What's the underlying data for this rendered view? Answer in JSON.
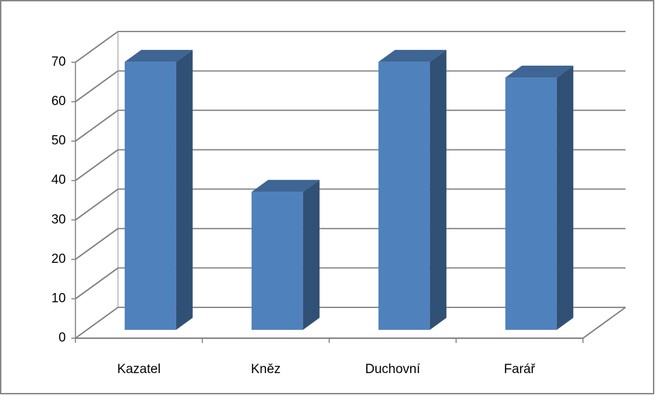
{
  "chart_data": {
    "type": "bar3d",
    "categories": [
      "Kazatel",
      "Kněz",
      "Duchovní",
      "Farář"
    ],
    "values": [
      68,
      35,
      68,
      64
    ],
    "color": "#4f81bd",
    "ylim": [
      0,
      70
    ],
    "yticks": [
      0,
      10,
      20,
      30,
      40,
      50,
      60,
      70
    ],
    "grid": true
  }
}
